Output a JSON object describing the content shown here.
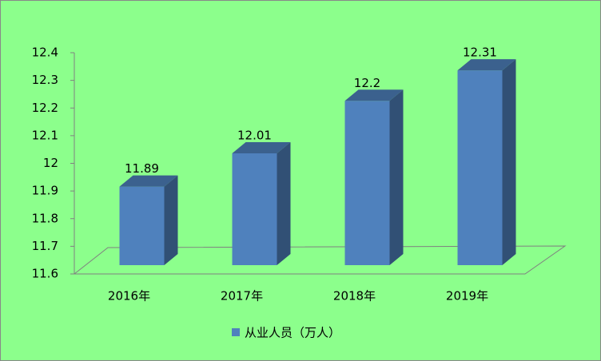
{
  "chart_data": {
    "type": "bar3d",
    "categories": [
      "2016年",
      "2017年",
      "2018年",
      "2019年"
    ],
    "series": [
      {
        "name": "从业人员（万人）",
        "color": "#4f81bd",
        "values": [
          11.89,
          12.01,
          12.2,
          12.31
        ]
      }
    ],
    "ylim": [
      11.6,
      12.4
    ],
    "yticks": [
      11.6,
      11.7,
      11.8,
      11.9,
      12,
      12.1,
      12.2,
      12.3,
      12.4
    ],
    "legend": "bottom"
  }
}
